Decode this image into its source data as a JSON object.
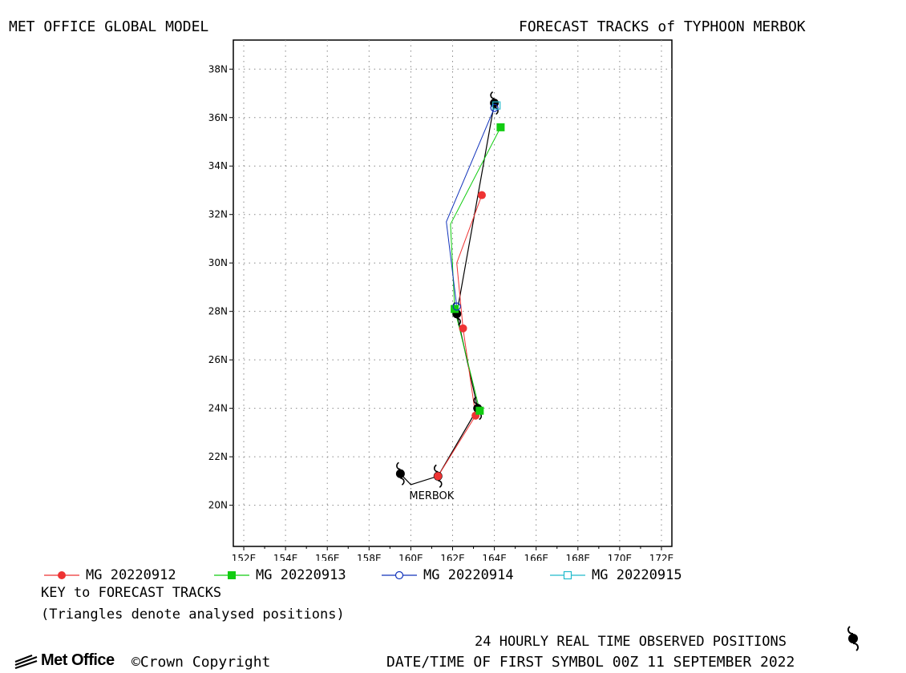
{
  "header": {
    "left_title": "MET OFFICE GLOBAL MODEL",
    "right_title": "FORECAST TRACKS of TYPHOON MERBOK"
  },
  "map": {
    "lon_range": [
      151.5,
      172.5
    ],
    "lat_range": [
      18.3,
      39.2
    ],
    "lon_ticks": [
      "152E",
      "154E",
      "156E",
      "158E",
      "160E",
      "162E",
      "164E",
      "166E",
      "168E",
      "170E",
      "172E"
    ],
    "lat_ticks": [
      "20N",
      "22N",
      "24N",
      "26N",
      "28N",
      "30N",
      "32N",
      "34N",
      "36N",
      "38N"
    ],
    "storm_label": "MERBOK",
    "grid": true
  },
  "observed_track": {
    "color": "#000000",
    "points": [
      {
        "lon": 159.5,
        "lat": 21.3
      },
      {
        "lon": 160.0,
        "lat": 20.85
      },
      {
        "lon": 161.3,
        "lat": 21.2
      },
      {
        "lon": 163.2,
        "lat": 24.0
      },
      {
        "lon": 162.2,
        "lat": 27.9
      },
      {
        "lon": 164.0,
        "lat": 36.6
      }
    ],
    "symbol_points": [
      {
        "lon": 159.5,
        "lat": 21.3
      },
      {
        "lon": 161.3,
        "lat": 21.2
      },
      {
        "lon": 163.2,
        "lat": 24.0
      },
      {
        "lon": 162.2,
        "lat": 27.9
      },
      {
        "lon": 164.0,
        "lat": 36.6
      }
    ]
  },
  "chart_data": {
    "type": "line",
    "series": [
      {
        "name": "MG 20220912",
        "color": "#ee3333",
        "marker": "filled-circle",
        "points": [
          {
            "lon": 161.3,
            "lat": 21.2
          },
          {
            "lon": 163.1,
            "lat": 23.7
          },
          {
            "lon": 162.5,
            "lat": 27.3
          },
          {
            "lon": 162.2,
            "lat": 30.0
          },
          {
            "lon": 163.4,
            "lat": 32.8
          }
        ],
        "marker_points": [
          {
            "lon": 161.3,
            "lat": 21.2
          },
          {
            "lon": 163.1,
            "lat": 23.7
          },
          {
            "lon": 162.5,
            "lat": 27.3
          },
          {
            "lon": 163.4,
            "lat": 32.8
          }
        ]
      },
      {
        "name": "MG 20220913",
        "color": "#11cc11",
        "marker": "filled-square",
        "points": [
          {
            "lon": 163.3,
            "lat": 23.9
          },
          {
            "lon": 162.1,
            "lat": 28.1
          },
          {
            "lon": 161.9,
            "lat": 31.6
          },
          {
            "lon": 164.3,
            "lat": 35.6
          }
        ],
        "marker_points": [
          {
            "lon": 163.3,
            "lat": 23.9
          },
          {
            "lon": 162.1,
            "lat": 28.1
          },
          {
            "lon": 164.3,
            "lat": 35.6
          }
        ]
      },
      {
        "name": "MG 20220914",
        "color": "#1133bb",
        "marker": "open-circle",
        "points": [
          {
            "lon": 162.2,
            "lat": 28.2
          },
          {
            "lon": 161.7,
            "lat": 31.7
          },
          {
            "lon": 164.0,
            "lat": 36.4
          }
        ],
        "marker_points": [
          {
            "lon": 162.2,
            "lat": 28.2
          },
          {
            "lon": 164.0,
            "lat": 36.4
          }
        ]
      },
      {
        "name": "MG 20220915",
        "color": "#22bbcc",
        "marker": "open-square",
        "points": [
          {
            "lon": 164.1,
            "lat": 36.5
          }
        ],
        "marker_points": [
          {
            "lon": 164.1,
            "lat": 36.5
          }
        ]
      }
    ]
  },
  "key": {
    "title": "KEY to FORECAST TRACKS",
    "note": "(Triangles denote analysed positions)"
  },
  "footer": {
    "observed_label": "24 HOURLY REAL TIME OBSERVED POSITIONS",
    "datetime": "DATE/TIME OF FIRST SYMBOL 00Z 11 SEPTEMBER 2022",
    "logo_text": "Met Office",
    "copyright": "©Crown Copyright"
  }
}
